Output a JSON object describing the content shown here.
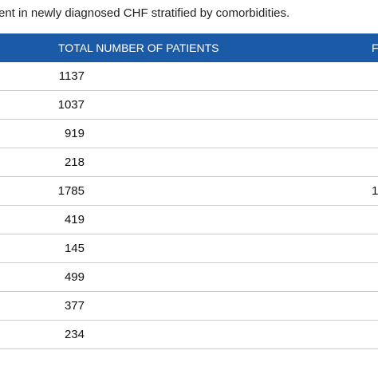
{
  "caption": "ent in newly diagnosed CHF stratified by comorbidities.",
  "table": {
    "header": [
      "TOTAL NUMBER OF PATIENTS",
      "F"
    ],
    "rows": [
      [
        "1137"
      ],
      [
        "1037"
      ],
      [
        "919"
      ],
      [
        "218"
      ],
      [
        "1785",
        "1"
      ],
      [
        "419"
      ],
      [
        "145"
      ],
      [
        "499"
      ],
      [
        "377"
      ],
      [
        "234"
      ]
    ]
  }
}
